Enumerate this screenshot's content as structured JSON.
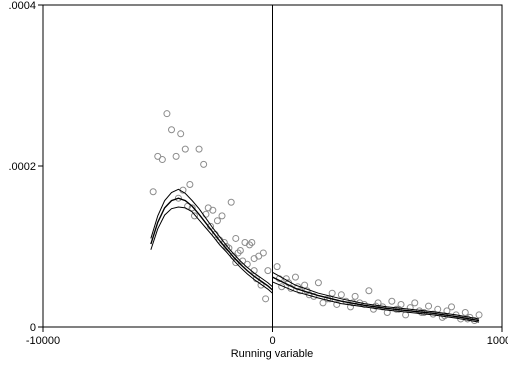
{
  "chart_data": {
    "type": "scatter",
    "title": "",
    "xlabel": "Running variable",
    "ylabel": "",
    "xlim": [
      -10000,
      10000
    ],
    "ylim": [
      0,
      0.0004
    ],
    "x_ticks": [
      -10000,
      0,
      10000
    ],
    "x_tick_labels": [
      "-10000",
      "0",
      "10000"
    ],
    "y_ticks": [
      0,
      0.0002,
      0.0004
    ],
    "y_tick_labels": [
      "0",
      ".0002",
      ".0004"
    ],
    "grid": false,
    "legend": "none",
    "cutoff": 0,
    "colors": {
      "points": "#8c8c8c",
      "lines": "#000000"
    },
    "series": [
      {
        "kind": "points",
        "x": [
          -5200,
          -5000,
          -4800,
          -4600,
          -4400,
          -4200,
          -4000,
          -3800,
          -3600,
          -3400,
          -3200,
          -3000,
          -2800,
          -2600,
          -2400,
          -2200,
          -2000,
          -1800,
          -1600,
          -1400,
          -1200,
          -1000,
          -800,
          -600,
          -400,
          -200,
          -4100,
          -3900,
          -3700,
          -3500,
          -2900,
          -2700,
          -2500,
          -2300,
          -2100,
          -1900,
          -1700,
          -1500,
          -1300,
          -1100,
          -900,
          -700,
          -500,
          -300,
          -1600,
          -800,
          200,
          400,
          600,
          800,
          1000,
          1200,
          1400,
          1600,
          1800,
          2000,
          2200,
          2400,
          2600,
          2800,
          3000,
          3200,
          3400,
          3600,
          3800,
          4000,
          4200,
          4400,
          4600,
          4800,
          5000,
          5200,
          5400,
          5600,
          5800,
          6000,
          6200,
          6400,
          6600,
          6800,
          7000,
          7200,
          7400,
          7600,
          7800,
          8000,
          8200,
          8400,
          8600,
          8800,
          9000,
          300,
          700,
          1100,
          1500,
          2500,
          3500,
          4500,
          5500,
          6500,
          7500,
          8500
        ],
        "y": [
          0.000168,
          0.000212,
          0.000208,
          0.000265,
          0.000245,
          0.000212,
          0.00024,
          0.000221,
          0.000177,
          0.000138,
          0.000221,
          0.000202,
          0.000148,
          0.000145,
          0.000132,
          0.000138,
          0.0001,
          0.000155,
          0.00011,
          9.5e-05,
          0.000105,
          0.000102,
          8.5e-05,
          8.8e-05,
          9.2e-05,
          7e-05,
          0.00016,
          0.00017,
          0.00015,
          0.000148,
          0.00014,
          0.000125,
          0.000115,
          0.000108,
          0.000105,
          9.8e-05,
          8.8e-05,
          9.2e-05,
          8.2e-05,
          7.8e-05,
          0.000105,
          6e-05,
          5.2e-05,
          3.5e-05,
          8e-05,
          7e-05,
          7.5e-05,
          5e-05,
          6e-05,
          4.8e-05,
          6.2e-05,
          4.5e-05,
          5.2e-05,
          4e-05,
          3.8e-05,
          5.5e-05,
          3e-05,
          3.5e-05,
          4.2e-05,
          2.8e-05,
          4e-05,
          3.2e-05,
          2.5e-05,
          3.8e-05,
          3e-05,
          2.8e-05,
          4.5e-05,
          2.2e-05,
          3e-05,
          2.5e-05,
          1.8e-05,
          3.2e-05,
          2.2e-05,
          2.8e-05,
          1.5e-05,
          2.4e-05,
          3e-05,
          2e-05,
          1.8e-05,
          2.6e-05,
          1.6e-05,
          2.2e-05,
          1.2e-05,
          2e-05,
          2.5e-05,
          1.5e-05,
          1e-05,
          1.8e-05,
          1.2e-05,
          8e-06,
          1.5e-05,
          6e-05,
          5.5e-05,
          5e-05,
          4.5e-05,
          3.5e-05,
          3e-05,
          2.6e-05,
          2.2e-05,
          1.8e-05,
          1.4e-05,
          1e-05
        ]
      },
      {
        "kind": "fit",
        "x": [
          -5300,
          -5000,
          -4700,
          -4400,
          -4100,
          -3800,
          -3500,
          -3200,
          -2900,
          -2600,
          -2300,
          -2000,
          -1700,
          -1400,
          -1100,
          -800,
          -500,
          -200,
          0
        ],
        "y": [
          0.000103,
          0.00013,
          0.000148,
          0.000157,
          0.00016,
          0.000157,
          0.00015,
          0.00014,
          0.000129,
          0.000118,
          0.000107,
          9.7e-05,
          8.7e-05,
          7.8e-05,
          7e-05,
          6.3e-05,
          5.7e-05,
          5.1e-05,
          4.6e-05
        ]
      },
      {
        "kind": "ci_upper",
        "x": [
          -5300,
          -5000,
          -4700,
          -4400,
          -4100,
          -3800,
          -3500,
          -3200,
          -2900,
          -2600,
          -2300,
          -2000,
          -1700,
          -1400,
          -1100,
          -800,
          -500,
          -200,
          0
        ],
        "y": [
          0.00011,
          0.000138,
          0.000157,
          0.000167,
          0.000171,
          0.000166,
          0.000157,
          0.000147,
          0.000135,
          0.000123,
          0.000112,
          0.000101,
          9.1e-05,
          8.2e-05,
          7.4e-05,
          6.7e-05,
          6.1e-05,
          5.5e-05,
          5e-05
        ]
      },
      {
        "kind": "ci_lower",
        "x": [
          -5300,
          -5000,
          -4700,
          -4400,
          -4100,
          -3800,
          -3500,
          -3200,
          -2900,
          -2600,
          -2300,
          -2000,
          -1700,
          -1400,
          -1100,
          -800,
          -500,
          -200,
          0
        ],
        "y": [
          9.6e-05,
          0.000122,
          0.000139,
          0.000147,
          0.000149,
          0.000148,
          0.000143,
          0.000133,
          0.000123,
          0.000113,
          0.000102,
          9.3e-05,
          8.3e-05,
          7.4e-05,
          6.6e-05,
          5.9e-05,
          5.3e-05,
          4.7e-05,
          4.2e-05
        ]
      },
      {
        "kind": "fit",
        "x": [
          0,
          1000,
          2000,
          3000,
          4000,
          5000,
          6000,
          7000,
          8000,
          9000
        ],
        "y": [
          6.2e-05,
          4.8e-05,
          3.9e-05,
          3.2e-05,
          2.7e-05,
          2.3e-05,
          2e-05,
          1.7e-05,
          1.3e-05,
          8e-06
        ]
      },
      {
        "kind": "ci_upper",
        "x": [
          0,
          1000,
          2000,
          3000,
          4000,
          5000,
          6000,
          7000,
          8000,
          9000
        ],
        "y": [
          6.8e-05,
          5.2e-05,
          4.2e-05,
          3.5e-05,
          2.9e-05,
          2.5e-05,
          2.2e-05,
          1.9e-05,
          1.5e-05,
          1e-05
        ]
      },
      {
        "kind": "ci_lower",
        "x": [
          0,
          1000,
          2000,
          3000,
          4000,
          5000,
          6000,
          7000,
          8000,
          9000
        ],
        "y": [
          5.6e-05,
          4.4e-05,
          3.6e-05,
          2.9e-05,
          2.5e-05,
          2.1e-05,
          1.8e-05,
          1.5e-05,
          1.1e-05,
          6e-06
        ]
      }
    ]
  }
}
